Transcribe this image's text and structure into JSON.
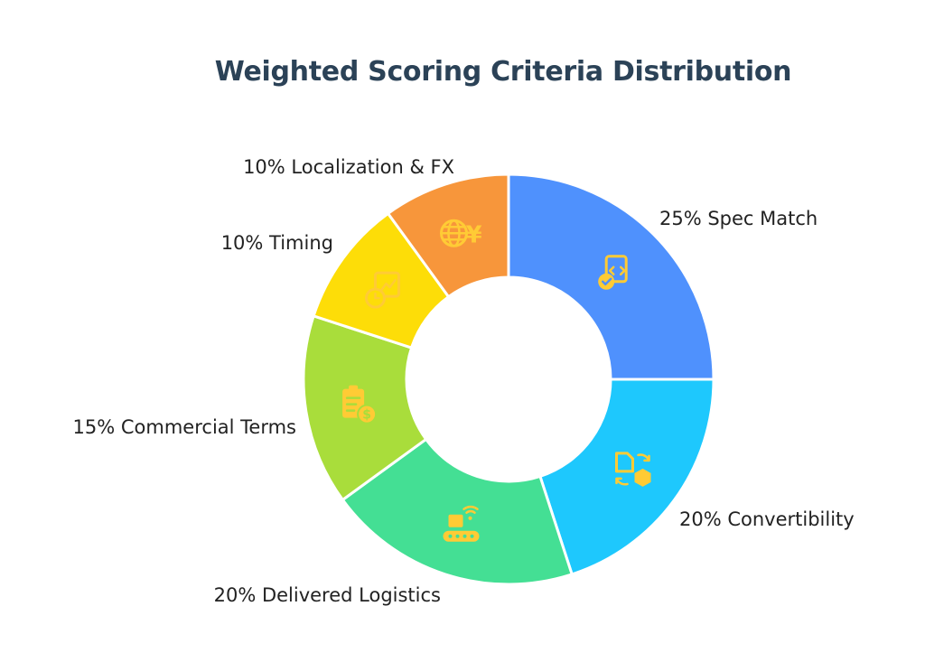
{
  "chart_data": {
    "type": "pie",
    "style": "donut",
    "title": "Weighted Scoring Criteria Distribution",
    "slices": [
      {
        "label": "25% Spec Match",
        "name": "Spec Match",
        "value": 25,
        "color": "#4f91fd",
        "label_color": "#222222",
        "icon": "document-code-check-icon"
      },
      {
        "label": "20% Convertibility",
        "name": "Convertibility",
        "value": 20,
        "color": "#1ec8fd",
        "label_color": "#5a5a4c",
        "icon": "document-box-convert-icon"
      },
      {
        "label": "20% Delivered Logistics",
        "name": "Delivered Logistics",
        "value": 20,
        "color": "#44df94",
        "label_color": "#5a5a4c",
        "icon": "conveyor-belt-package-icon"
      },
      {
        "label": "15% Commercial Terms",
        "name": "Commercial Terms",
        "value": 15,
        "color": "#a9dd3b",
        "label_color": "#222222",
        "icon": "clipboard-dollar-icon"
      },
      {
        "label": "10% Timing",
        "name": "Timing",
        "value": 10,
        "color": "#fddd08",
        "label_color": "#222222",
        "icon": "chart-clock-icon"
      },
      {
        "label": "10% Localization & FX",
        "name": "Localization & FX",
        "value": 10,
        "color": "#f7963b",
        "label_color": "#222222",
        "icon": "globe-yen-icon"
      }
    ],
    "icon_color": "#ffcb35"
  }
}
